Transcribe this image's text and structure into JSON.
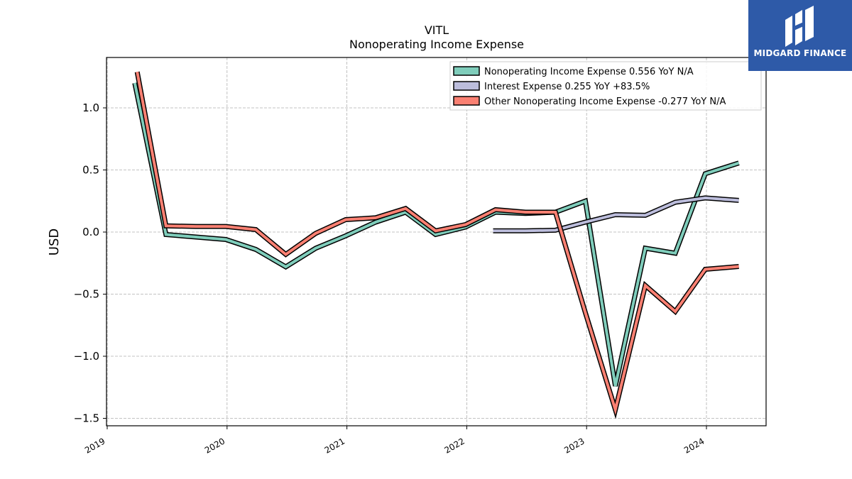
{
  "chart_data": {
    "type": "line",
    "title": "VITL",
    "subtitle": "Nonoperating Income Expense",
    "ylabel": "USD",
    "xlabel": "",
    "xlim": [
      2019.0,
      2024.5
    ],
    "ylim": [
      -1.55,
      1.4
    ],
    "yticks": [
      1.0,
      0.5,
      0.0,
      -0.5,
      -1.0,
      -1.5
    ],
    "ytick_labels": [
      "1.0",
      "0.5",
      "0.0",
      "−0.5",
      "−1.0",
      "−1.5"
    ],
    "xticks": [
      2019,
      2020,
      2021,
      2022,
      2023,
      2024
    ],
    "xtick_labels": [
      "2019",
      "2020",
      "2021",
      "2022",
      "2023",
      "2024"
    ],
    "grid": true,
    "legend_position": "top-right",
    "series": [
      {
        "name": "Nonoperating Income Expense",
        "legend_label": "Nonoperating Income Expense  0.556 YoY N/A",
        "color": "#7fcdbb",
        "x": [
          2019.23,
          2019.49,
          2019.74,
          2019.99,
          2020.24,
          2020.49,
          2020.74,
          2020.99,
          2021.24,
          2021.49,
          2021.74,
          2021.99,
          2022.24,
          2022.49,
          2022.74,
          2022.99,
          2023.24,
          2023.49,
          2023.74,
          2023.99,
          2024.27
        ],
        "values": [
          1.2,
          -0.02,
          -0.04,
          -0.06,
          -0.14,
          -0.28,
          -0.13,
          -0.03,
          0.08,
          0.16,
          -0.02,
          0.04,
          0.16,
          0.15,
          0.16,
          0.25,
          -1.24,
          -0.13,
          -0.17,
          0.47,
          0.556
        ]
      },
      {
        "name": "Interest Expense",
        "legend_label": "Interest Expense  0.255 YoY +83.5%",
        "color": "#bcbddc",
        "x": [
          2022.22,
          2022.49,
          2022.74,
          2022.99,
          2023.24,
          2023.49,
          2023.74,
          2023.99,
          2024.27
        ],
        "values": [
          0.01,
          0.01,
          0.015,
          0.08,
          0.14,
          0.135,
          0.24,
          0.275,
          0.255
        ]
      },
      {
        "name": "Other Nonoperating Income Expense",
        "legend_label": "Other Nonoperating Income Expense  -0.277 YoY N/A",
        "color": "#fa8072",
        "x": [
          2019.25,
          2019.49,
          2019.74,
          2019.99,
          2020.24,
          2020.49,
          2020.74,
          2020.99,
          2021.24,
          2021.49,
          2021.74,
          2021.99,
          2022.24,
          2022.49,
          2022.74,
          2022.99,
          2023.24,
          2023.49,
          2023.74,
          2023.99,
          2024.27
        ],
        "values": [
          1.29,
          0.05,
          0.045,
          0.045,
          0.02,
          -0.18,
          -0.01,
          0.1,
          0.115,
          0.19,
          0.01,
          0.06,
          0.18,
          0.16,
          0.16,
          -0.65,
          -1.43,
          -0.43,
          -0.64,
          -0.3,
          -0.277
        ]
      }
    ]
  },
  "watermark": {
    "text": "MIDGARD FINANCE",
    "background": "#2e5aa8"
  }
}
